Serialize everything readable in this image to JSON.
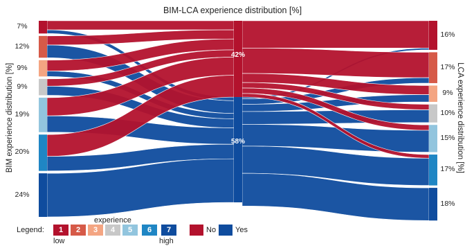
{
  "chart_data": {
    "type": "sankey",
    "title": "BIM-LCA experience distribution [%]",
    "left_axis_label": "BIM experience distribution [%]",
    "right_axis_label": "LCA experience distribution [%]",
    "left_nodes": [
      {
        "level": 1,
        "percent": 7,
        "label": "7%"
      },
      {
        "level": 2,
        "percent": 12,
        "label": "12%"
      },
      {
        "level": 3,
        "percent": 9,
        "label": "9%"
      },
      {
        "level": 4,
        "percent": 9,
        "label": "9%"
      },
      {
        "level": 5,
        "percent": 19,
        "label": "19%"
      },
      {
        "level": 6,
        "percent": 20,
        "label": "20%"
      },
      {
        "level": 7,
        "percent": 24,
        "label": "24%"
      }
    ],
    "middle_nodes": [
      {
        "name": "No",
        "percent": 42,
        "label": "42%"
      },
      {
        "name": "Yes",
        "percent": 58,
        "label": "58%"
      }
    ],
    "right_nodes": [
      {
        "level": 1,
        "percent": 16,
        "label": "16%"
      },
      {
        "level": 2,
        "percent": 17,
        "label": "17%"
      },
      {
        "level": 3,
        "percent": 9,
        "label": "9%"
      },
      {
        "level": 4,
        "percent": 10,
        "label": "10%"
      },
      {
        "level": 5,
        "percent": 15,
        "label": "15%"
      },
      {
        "level": 6,
        "percent": 17,
        "label": "17%"
      },
      {
        "level": 7,
        "percent": 18,
        "label": "18%"
      }
    ],
    "flows_left": [
      {
        "from_level": 1,
        "no": 5,
        "yes": 2
      },
      {
        "from_level": 2,
        "no": 5,
        "yes": 7
      },
      {
        "from_level": 3,
        "no": 6,
        "yes": 3
      },
      {
        "from_level": 4,
        "no": 4,
        "yes": 5
      },
      {
        "from_level": 5,
        "no": 10,
        "yes": 9
      },
      {
        "from_level": 6,
        "no": 12,
        "yes": 8
      },
      {
        "from_level": 7,
        "no": 0,
        "yes": 24
      }
    ],
    "flows_right": [
      {
        "to_level": 1,
        "no": 15,
        "yes": 1
      },
      {
        "to_level": 2,
        "no": 14,
        "yes": 3
      },
      {
        "to_level": 3,
        "no": 5,
        "yes": 4
      },
      {
        "to_level": 4,
        "no": 3,
        "yes": 7
      },
      {
        "to_level": 5,
        "no": 3,
        "yes": 12
      },
      {
        "to_level": 6,
        "no": 2,
        "yes": 15
      },
      {
        "to_level": 7,
        "no": 0,
        "yes": 18
      }
    ],
    "legend": {
      "label": "Legend:",
      "experience_title": "experience",
      "levels": [
        "1",
        "2",
        "3",
        "4",
        "5",
        "6",
        "7"
      ],
      "low_label": "low",
      "high_label": "high",
      "no_label": "No",
      "yes_label": "Yes"
    }
  },
  "colors": {
    "no": "#b3122d",
    "yes": "#0f4c9e",
    "levels": [
      "#b3122d",
      "#d65a48",
      "#f4a582",
      "#c8c8c8",
      "#92c5de",
      "#1f86c4",
      "#0f4c9e"
    ]
  }
}
